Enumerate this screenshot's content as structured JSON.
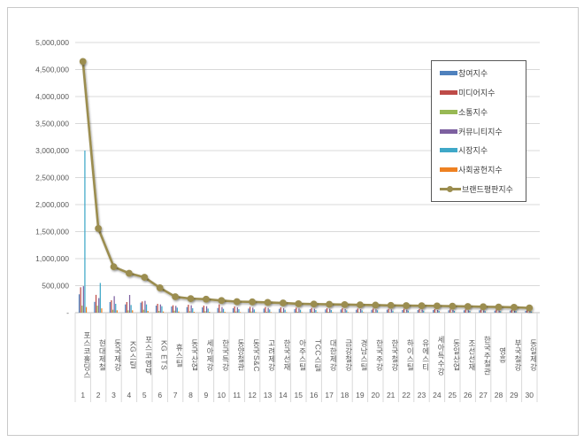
{
  "frame": {
    "border_color": "#c9c9c9",
    "background": "#ffffff"
  },
  "legend": {
    "border_color": "#595959",
    "items": [
      {
        "label": "참여지수",
        "color": "#4F81BD",
        "type": "bar"
      },
      {
        "label": "미디어지수",
        "color": "#BE4B48",
        "type": "bar"
      },
      {
        "label": "소통지수",
        "color": "#98B954",
        "type": "bar"
      },
      {
        "label": "커뮤니티지수",
        "color": "#7D60A0",
        "type": "bar"
      },
      {
        "label": "시장지수",
        "color": "#3FA8C8",
        "type": "bar"
      },
      {
        "label": "사회공헌지수",
        "color": "#EE8122",
        "type": "bar"
      },
      {
        "label": "브랜드평판지수",
        "color": "#9B8D4F",
        "type": "line"
      }
    ]
  },
  "chart_data": {
    "type": "bar",
    "title": "",
    "xlabel": "",
    "ylabel": "",
    "ylim": [
      0,
      5000000
    ],
    "y_tick_step": 500000,
    "y_tick_labels": [
      "-",
      "500,000",
      "1,000,000",
      "1,500,000",
      "2,000,000",
      "2,500,000",
      "3,000,000",
      "3,500,000",
      "4,000,000",
      "4,500,000",
      "5,000,000"
    ],
    "grid": true,
    "legend_position": "top-right",
    "categories": [
      "포스코홀딩스",
      "현대제철",
      "동국제강",
      "KG스틸",
      "포스코엠텍",
      "KG ETS",
      "휴스틸",
      "동국산업",
      "세아제강",
      "한국특강",
      "동양철관",
      "동국S&C",
      "고려제강",
      "한국선재",
      "아주스틸",
      "TCC스틸",
      "대한제강",
      "금강철강",
      "경남스틸",
      "한국주강",
      "한국철강",
      "하이스틸",
      "유에스티",
      "세아특수강",
      "동일산업",
      "조선선재",
      "한국주철관",
      "영흥",
      "부국철강",
      "동일제강"
    ],
    "category_numbers": [
      1,
      2,
      3,
      4,
      5,
      6,
      7,
      8,
      9,
      10,
      11,
      12,
      13,
      14,
      15,
      16,
      17,
      18,
      19,
      20,
      21,
      22,
      23,
      24,
      25,
      26,
      27,
      28,
      29,
      30
    ],
    "series": [
      {
        "name": "참여지수",
        "type": "bar",
        "color": "#4F81BD",
        "values": [
          340000,
          200000,
          197000,
          153000,
          186000,
          131000,
          115000,
          104000,
          98000,
          87000,
          82000,
          76000,
          76000,
          71000,
          65000,
          65000,
          60000,
          60000,
          55000,
          55000,
          55000,
          49000,
          49000,
          49000,
          44000,
          44000,
          44000,
          38000,
          38000,
          33000
        ]
      },
      {
        "name": "미디어지수",
        "type": "bar",
        "color": "#BE4B48",
        "values": [
          470000,
          330000,
          229000,
          197000,
          208000,
          164000,
          137000,
          148000,
          131000,
          153000,
          115000,
          109000,
          104000,
          98000,
          93000,
          87000,
          82000,
          82000,
          76000,
          76000,
          71000,
          71000,
          65000,
          65000,
          60000,
          60000,
          55000,
          55000,
          49000,
          44000
        ]
      },
      {
        "name": "소통지수",
        "type": "bar",
        "color": "#98B954",
        "values": [
          130000,
          130000,
          55000,
          44000,
          55000,
          33000,
          38000,
          27000,
          27000,
          22000,
          22000,
          22000,
          16000,
          16000,
          16000,
          16000,
          16000,
          11000,
          11000,
          11000,
          11000,
          11000,
          11000,
          11000,
          11000,
          5000,
          5000,
          5000,
          5000,
          5000
        ]
      },
      {
        "name": "커뮤니티지수",
        "type": "bar",
        "color": "#7D60A0",
        "values": [
          490000,
          270000,
          306000,
          328000,
          219000,
          153000,
          126000,
          137000,
          120000,
          104000,
          98000,
          93000,
          87000,
          82000,
          76000,
          71000,
          71000,
          65000,
          65000,
          60000,
          60000,
          55000,
          55000,
          49000,
          49000,
          44000,
          44000,
          38000,
          38000,
          33000
        ]
      },
      {
        "name": "시장지수",
        "type": "bar",
        "color": "#3FA8C8",
        "values": [
          3000000,
          550000,
          164000,
          142000,
          153000,
          120000,
          93000,
          82000,
          76000,
          71000,
          65000,
          60000,
          60000,
          55000,
          55000,
          49000,
          49000,
          44000,
          44000,
          44000,
          38000,
          38000,
          38000,
          33000,
          33000,
          33000,
          27000,
          27000,
          27000,
          22000
        ]
      },
      {
        "name": "사회공헌지수",
        "type": "bar",
        "color": "#EE8122",
        "values": [
          105000,
          80000,
          44000,
          44000,
          33000,
          22000,
          22000,
          16000,
          16000,
          16000,
          11000,
          11000,
          11000,
          11000,
          11000,
          11000,
          11000,
          11000,
          11000,
          5000,
          5000,
          5000,
          5000,
          5000,
          5000,
          5000,
          5000,
          5000,
          5000,
          5000
        ]
      },
      {
        "name": "브랜드평판지수",
        "type": "line",
        "color": "#9B8D4F",
        "values": [
          4650000,
          1560000,
          850000,
          730000,
          655000,
          460000,
          295000,
          260000,
          250000,
          225000,
          205000,
          200000,
          190000,
          180000,
          165000,
          160000,
          155000,
          150000,
          145000,
          140000,
          135000,
          130000,
          128000,
          125000,
          120000,
          115000,
          110000,
          105000,
          100000,
          88000
        ]
      }
    ]
  }
}
